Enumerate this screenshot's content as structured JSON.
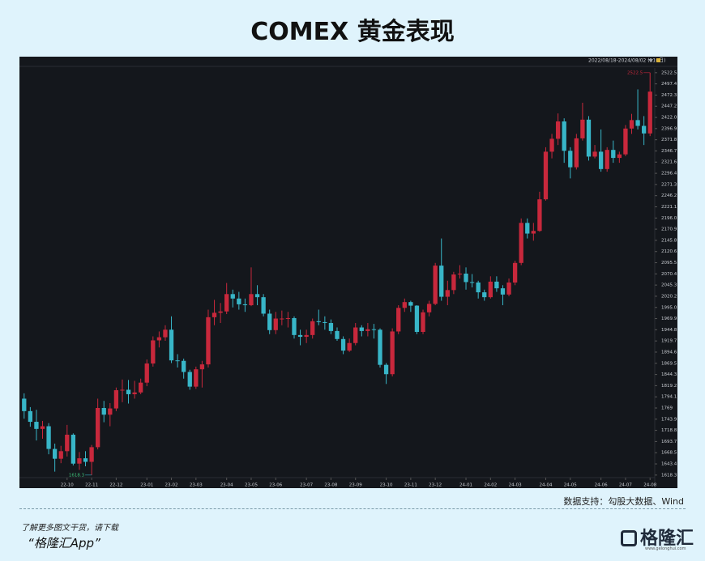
{
  "header": {
    "title": "COMEX 黄金表现"
  },
  "chart_data": {
    "type": "candlestick",
    "range_label": "2022/08/18-2024/08/02 (510日)",
    "up_color": "#c8283c",
    "down_color": "#38b6c8",
    "high_annotation": "2522.5",
    "low_annotation": "1618.3",
    "ylim": [
      1598,
      2544
    ],
    "yticks": [
      1618.3,
      1643.4,
      1668.5,
      1693.7,
      1718.8,
      1743.9,
      1769.0,
      1794.1,
      1819.2,
      1844.3,
      1869.5,
      1894.6,
      1919.7,
      1944.8,
      1969.9,
      {
        "value": 1995,
        "label": "1995.0"
      },
      2020.2,
      2045.3,
      2070.4,
      2095.5,
      2120.6,
      2145.8,
      2170.9,
      {
        "value": 2196,
        "label": "2196.0"
      },
      2221.1,
      2246.2,
      2271.3,
      2296.4,
      2321.6,
      2346.7,
      2371.8,
      2396.9,
      {
        "value": 2422,
        "label": "2422.0"
      },
      2447.2,
      2472.3,
      2497.4,
      2522.5
    ],
    "categories": [
      null,
      null,
      null,
      null,
      null,
      null,
      null,
      "22-10",
      null,
      null,
      null,
      "22-11",
      null,
      null,
      null,
      "22-12",
      null,
      null,
      null,
      null,
      "23-01",
      null,
      null,
      null,
      "23-02",
      null,
      null,
      null,
      "23-03",
      null,
      null,
      null,
      null,
      "23-04",
      null,
      null,
      null,
      "23-05",
      null,
      null,
      null,
      "23-06",
      null,
      null,
      null,
      null,
      "23-07",
      null,
      null,
      null,
      "23-08",
      null,
      null,
      null,
      "23-09",
      null,
      null,
      null,
      null,
      "23-10",
      null,
      null,
      null,
      "23-11",
      null,
      null,
      null,
      "23-12",
      null,
      null,
      null,
      null,
      "24-01",
      null,
      null,
      null,
      "24-02",
      null,
      null,
      null,
      "24-03",
      null,
      null,
      null,
      null,
      "24-04",
      null,
      null,
      null,
      "24-05",
      null,
      null,
      null,
      null,
      "24-06",
      null,
      null,
      null,
      "24-07",
      null,
      null,
      null,
      "24-08"
    ],
    "open": [
      1790,
      1762,
      1738,
      1722,
      1728,
      1677,
      1655,
      1672,
      1709,
      1644,
      1656,
      1648,
      1681,
      1769,
      1754,
      1768,
      1809,
      1810,
      1800,
      1804,
      1826,
      1869,
      1921,
      1928,
      1945,
      1876,
      1875,
      1850,
      1817,
      1856,
      1867,
      1973,
      1983,
      1986,
      2025,
      2015,
      2002,
      2000,
      2025,
      2018,
      1981,
      1944,
      1970,
      1970,
      1971,
      1933,
      1929,
      1933,
      1964,
      1962,
      1960,
      1942,
      1924,
      1898,
      1915,
      1950,
      1942,
      1946,
      1945,
      1866,
      1845,
      1941,
      1994,
      2007,
      1999,
      1940,
      1984,
      2003,
      2089,
      2019,
      2034,
      2069,
      2071,
      2052,
      2051,
      2029,
      2018,
      2053,
      2038,
      2024,
      2051,
      2095,
      2185,
      2161,
      2167,
      2238,
      2345,
      2374,
      2413,
      2347,
      2310,
      2375,
      2417,
      2334,
      2345,
      2306,
      2349,
      2331,
      2339,
      2397,
      2416,
      2403,
      2386
    ],
    "high": [
      1802,
      1771,
      1765,
      1740,
      1735,
      1689,
      1684,
      1731,
      1712,
      1670,
      1672,
      1686,
      1790,
      1785,
      1780,
      1815,
      1833,
      1832,
      1830,
      1835,
      1878,
      1930,
      1941,
      1955,
      1975,
      1890,
      1880,
      1855,
      1862,
      1875,
      1990,
      2012,
      2005,
      2050,
      2035,
      2030,
      2015,
      2085,
      2045,
      2025,
      1990,
      1985,
      1988,
      1985,
      1975,
      1945,
      1945,
      1970,
      1990,
      1975,
      1968,
      1950,
      1930,
      1925,
      1960,
      1955,
      1960,
      1958,
      1948,
      1870,
      1948,
      2000,
      2015,
      2010,
      2000,
      1990,
      2010,
      2095,
      2150,
      2055,
      2075,
      2090,
      2085,
      2070,
      2055,
      2035,
      2065,
      2065,
      2045,
      2060,
      2100,
      2195,
      2195,
      2185,
      2255,
      2355,
      2385,
      2431,
      2420,
      2355,
      2385,
      2455,
      2425,
      2360,
      2395,
      2355,
      2370,
      2345,
      2405,
      2430,
      2485,
      2425,
      2522.5
    ],
    "low": [
      1745,
      1727,
      1696,
      1700,
      1665,
      1626,
      1645,
      1660,
      1640,
      1630,
      1638,
      1618.3,
      1676,
      1737,
      1728,
      1762,
      1782,
      1779,
      1790,
      1800,
      1818,
      1862,
      1905,
      1920,
      1870,
      1860,
      1835,
      1810,
      1812,
      1815,
      1860,
      1955,
      1960,
      1980,
      1995,
      1990,
      1985,
      1998,
      2000,
      1975,
      1935,
      1935,
      1955,
      1950,
      1925,
      1910,
      1915,
      1925,
      1955,
      1945,
      1935,
      1920,
      1890,
      1895,
      1910,
      1930,
      1930,
      1925,
      1860,
      1823,
      1840,
      1935,
      1985,
      1985,
      1935,
      1935,
      1975,
      2000,
      2010,
      2000,
      2025,
      2060,
      2035,
      2040,
      2015,
      2010,
      2015,
      2030,
      2000,
      2020,
      2045,
      2090,
      2150,
      2145,
      2165,
      2235,
      2330,
      2360,
      2320,
      2285,
      2305,
      2370,
      2325,
      2330,
      2300,
      2300,
      2320,
      2320,
      2335,
      2385,
      2395,
      2360,
      2380
    ],
    "close": [
      1762,
      1738,
      1722,
      1728,
      1677,
      1655,
      1672,
      1709,
      1644,
      1656,
      1648,
      1681,
      1769,
      1754,
      1768,
      1809,
      1810,
      1800,
      1804,
      1826,
      1869,
      1921,
      1928,
      1945,
      1876,
      1875,
      1850,
      1817,
      1856,
      1867,
      1973,
      1983,
      1986,
      2025,
      2015,
      2002,
      2000,
      2025,
      2018,
      1981,
      1944,
      1970,
      1970,
      1971,
      1933,
      1929,
      1933,
      1964,
      1962,
      1960,
      1942,
      1924,
      1898,
      1915,
      1950,
      1942,
      1946,
      1945,
      1866,
      1845,
      1941,
      1994,
      2007,
      1999,
      1940,
      1984,
      2003,
      2089,
      2019,
      2034,
      2069,
      2071,
      2052,
      2051,
      2029,
      2018,
      2053,
      2038,
      2024,
      2051,
      2095,
      2185,
      2161,
      2167,
      2238,
      2345,
      2374,
      2413,
      2347,
      2310,
      2375,
      2417,
      2334,
      2345,
      2306,
      2349,
      2331,
      2339,
      2397,
      2416,
      2403,
      2386,
      2480
    ]
  },
  "footer": {
    "source": "数据支持：勾股大数据、Wind",
    "download": "了解更多图文干货，请下载",
    "app": "“格隆汇App”",
    "logo": "格隆汇",
    "logo_url": "www.gelonghui.com"
  }
}
